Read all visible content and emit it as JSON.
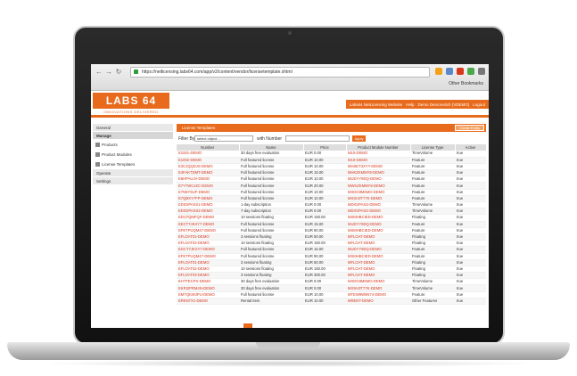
{
  "browser": {
    "url": "https://netlicensing.labs64.com/app/v2/content/vendor/licensetemplate.xhtml",
    "other_bookmarks": "Other Bookmarks"
  },
  "app": {
    "logo": "LABS 64",
    "tagline": "INNOVATIONS DELIVERED",
    "top_links": [
      "Labs64 NetLicensing Website",
      "Help",
      "Demo Demonvitch (VDEMO)",
      "Logout"
    ]
  },
  "sidebar": {
    "items": [
      {
        "label": "General",
        "type": "item"
      },
      {
        "label": "Manage",
        "type": "header"
      },
      {
        "label": "Products",
        "type": "sub"
      },
      {
        "label": "Product Modules",
        "type": "sub"
      },
      {
        "label": "License Templates",
        "type": "sub"
      },
      {
        "label": "Operate",
        "type": "item"
      },
      {
        "label": "Settings",
        "type": "item"
      }
    ]
  },
  "panel": {
    "title": "License Templates",
    "create_label": "Create Entity"
  },
  "filter": {
    "label": "Filter By",
    "select_placeholder": "select object...",
    "with_number": "with Number",
    "apply": "Apply"
  },
  "table": {
    "columns": [
      "Number",
      "Name",
      "Price",
      "Product Module Number",
      "License Type",
      "Active"
    ],
    "rows": [
      [
        "E1001-DEMO",
        "30 days free evaluation",
        "EUR 0.00",
        "M10-DEMO",
        "TimeVolume",
        "true"
      ],
      [
        "E1002-DEMO",
        "Full featured license",
        "EUR 10.00",
        "M10-DEMO",
        "Feature",
        "true"
      ],
      [
        "E3CJQQDJS-DEMO",
        "Full featured license",
        "EUR 10.00",
        "MHSET3XYY-DEMO",
        "Feature",
        "true"
      ],
      [
        "E4FAKTDMT-DEMO",
        "Full featured license",
        "EUR 15.00",
        "MHKZKMMY8-DEMO",
        "Feature",
        "true"
      ],
      [
        "E6HPAUJV-DEMO",
        "Full featured license",
        "EUR 10.00",
        "MUDYY9DQ-DEMO",
        "Feature",
        "true"
      ],
      [
        "E7Y7WCJZC-DEMO",
        "Full featured license",
        "EUR 20.00",
        "MWKZKMMY8-DEMO",
        "Feature",
        "true"
      ],
      [
        "E7N8Y9UF-DEMO",
        "Full featured license",
        "EUR 10.00",
        "MXDG8M6MO-DEMO",
        "Feature",
        "true"
      ],
      [
        "E7QBXY7FP-DEMO",
        "Full featured license",
        "EUR 10.00",
        "MXSH3T77K-DEMO",
        "Feature",
        "true"
      ],
      [
        "EDIGIPASS1-DEMO",
        "1-day subscription",
        "EUR 0.00",
        "MDIGIPASS-DEMO",
        "TimeVolume",
        "true"
      ],
      [
        "EDIGIPASS2-DEMO",
        "7-day subscription",
        "EUR 0.00",
        "MDIGIPASS-DEMO",
        "TimeVolume",
        "true"
      ],
      [
        "EDU7QMFQF-DEMO",
        "10 sessions floating",
        "EUR 150.00",
        "MSMHBCIED-DEMO",
        "Floating",
        "true"
      ],
      [
        "EECT7JKXY7-DEMO",
        "Full featured license",
        "EUR 15.00",
        "MUDYY9DQ-DEMO",
        "Feature",
        "true"
      ],
      [
        "EFETPUQM47-DEMO",
        "Full featured license",
        "EUR 90.00",
        "MSMHBCIED-DEMO",
        "Feature",
        "true"
      ],
      [
        "EFLOAT01-DEMO",
        "3 sessions floating",
        "EUR 50.00",
        "MFLOAT-DEMO",
        "Floating",
        "true"
      ],
      [
        "EFLOAT02-DEMO",
        "10 sessions floating",
        "EUR 150.00",
        "MFLOAT-DEMO",
        "Floating",
        "true"
      ],
      [
        "EGCT7JKXY7-DEMO",
        "Full featured license",
        "EUR 15.00",
        "MUDYY9DQ-DEMO",
        "Feature",
        "true"
      ],
      [
        "EFETPUQM47-DEMO",
        "Full featured license",
        "EUR 90.00",
        "MSMHBCIED-DEMO",
        "Feature",
        "true"
      ],
      [
        "EFLOAT01-DEMO",
        "3 sessions floating",
        "EUR 50.00",
        "MFLOAT-DEMO",
        "Floating",
        "true"
      ],
      [
        "EFLOAT02-DEMO",
        "10 sessions floating",
        "EUR 150.00",
        "MFLOAT-DEMO",
        "Floating",
        "true"
      ],
      [
        "EFLOAT03-DEMO",
        "3 sessions floating",
        "EUR 300.00",
        "MFLOAT-DEMO",
        "Floating",
        "true"
      ],
      [
        "EHTTECPX-DEMO",
        "30 days free evaluation",
        "EUR 0.00",
        "MXDG8M6MO-DEMO",
        "TimeVolume",
        "true"
      ],
      [
        "EKRI2PRM4N-DEMO",
        "30 days free evaluation",
        "EUR 0.00",
        "MXSH3T77K-DEMO",
        "TimeVolume",
        "true"
      ],
      [
        "EMTQKWJPU-DEMO",
        "Full featured license",
        "EUR 10.00",
        "MTEW9W5N74-DEMO",
        "Feature",
        "true"
      ],
      [
        "EREN7X1-DEMO",
        "Rental Item",
        "EUR 10.00",
        "MRENT-DEMO",
        "Other Features",
        "true"
      ]
    ]
  }
}
